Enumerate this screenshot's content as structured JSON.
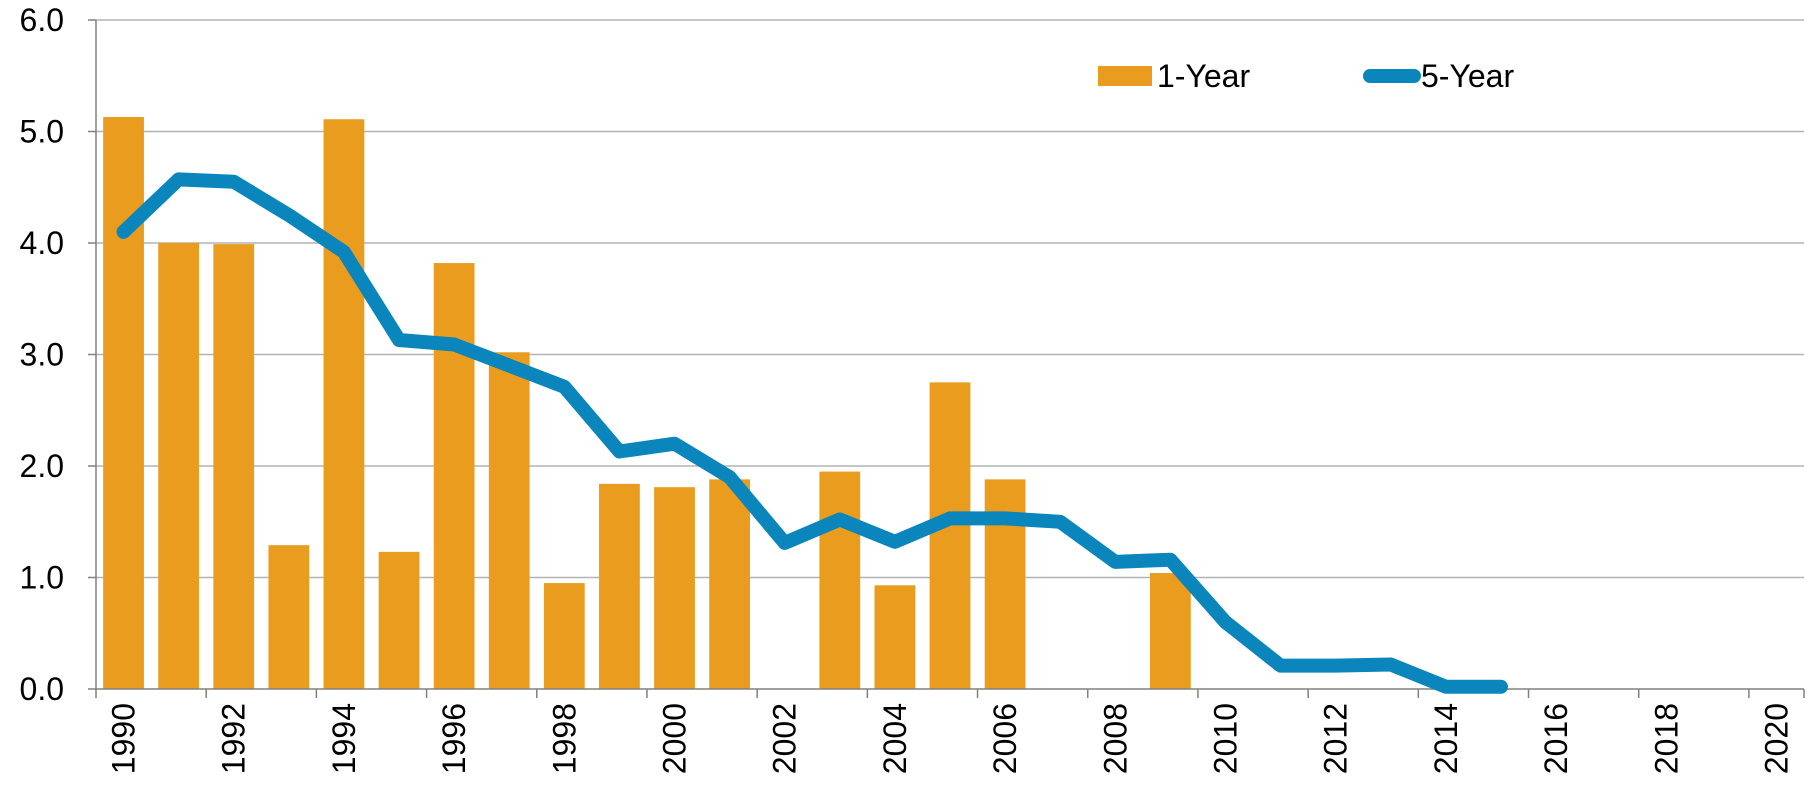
{
  "chart_data": {
    "type": "bar",
    "title": "",
    "xlabel": "",
    "ylabel": "",
    "ylim": [
      0,
      6
    ],
    "yticks": [
      "0.0",
      "1.0",
      "2.0",
      "3.0",
      "4.0",
      "5.0",
      "6.0"
    ],
    "grid": true,
    "legend_position": "top-right",
    "categories": [
      1990,
      1991,
      1992,
      1993,
      1994,
      1995,
      1996,
      1997,
      1998,
      1999,
      2000,
      2001,
      2002,
      2003,
      2004,
      2005,
      2006,
      2007,
      2008,
      2009,
      2010,
      2011,
      2012,
      2013,
      2014,
      2015,
      2016,
      2017,
      2018,
      2019,
      2020
    ],
    "xtick_labels": [
      "1990",
      "1992",
      "1994",
      "1996",
      "1998",
      "2000",
      "2002",
      "2004",
      "2006",
      "2008",
      "2010",
      "2012",
      "2014",
      "2016",
      "2018",
      "2020"
    ],
    "series": [
      {
        "name": "1-Year",
        "type": "bar",
        "color": "#E99C1E",
        "values": [
          5.13,
          4.0,
          3.99,
          1.29,
          5.11,
          1.23,
          3.82,
          3.02,
          0.95,
          1.84,
          1.81,
          1.88,
          0.0,
          1.95,
          0.93,
          2.75,
          1.88,
          0.0,
          0.0,
          1.04,
          null,
          null,
          null,
          null,
          null,
          null,
          null,
          null,
          null,
          null,
          null
        ]
      },
      {
        "name": "5-Year",
        "type": "line",
        "color": "#0A86BC",
        "values": [
          4.1,
          4.57,
          4.55,
          4.25,
          3.92,
          3.13,
          3.09,
          2.9,
          2.71,
          2.13,
          2.2,
          1.9,
          1.31,
          1.52,
          1.32,
          1.53,
          1.53,
          1.5,
          1.14,
          1.16,
          0.6,
          0.21,
          0.21,
          0.22,
          0.02,
          0.02,
          null,
          null,
          null,
          null,
          null
        ]
      }
    ]
  }
}
